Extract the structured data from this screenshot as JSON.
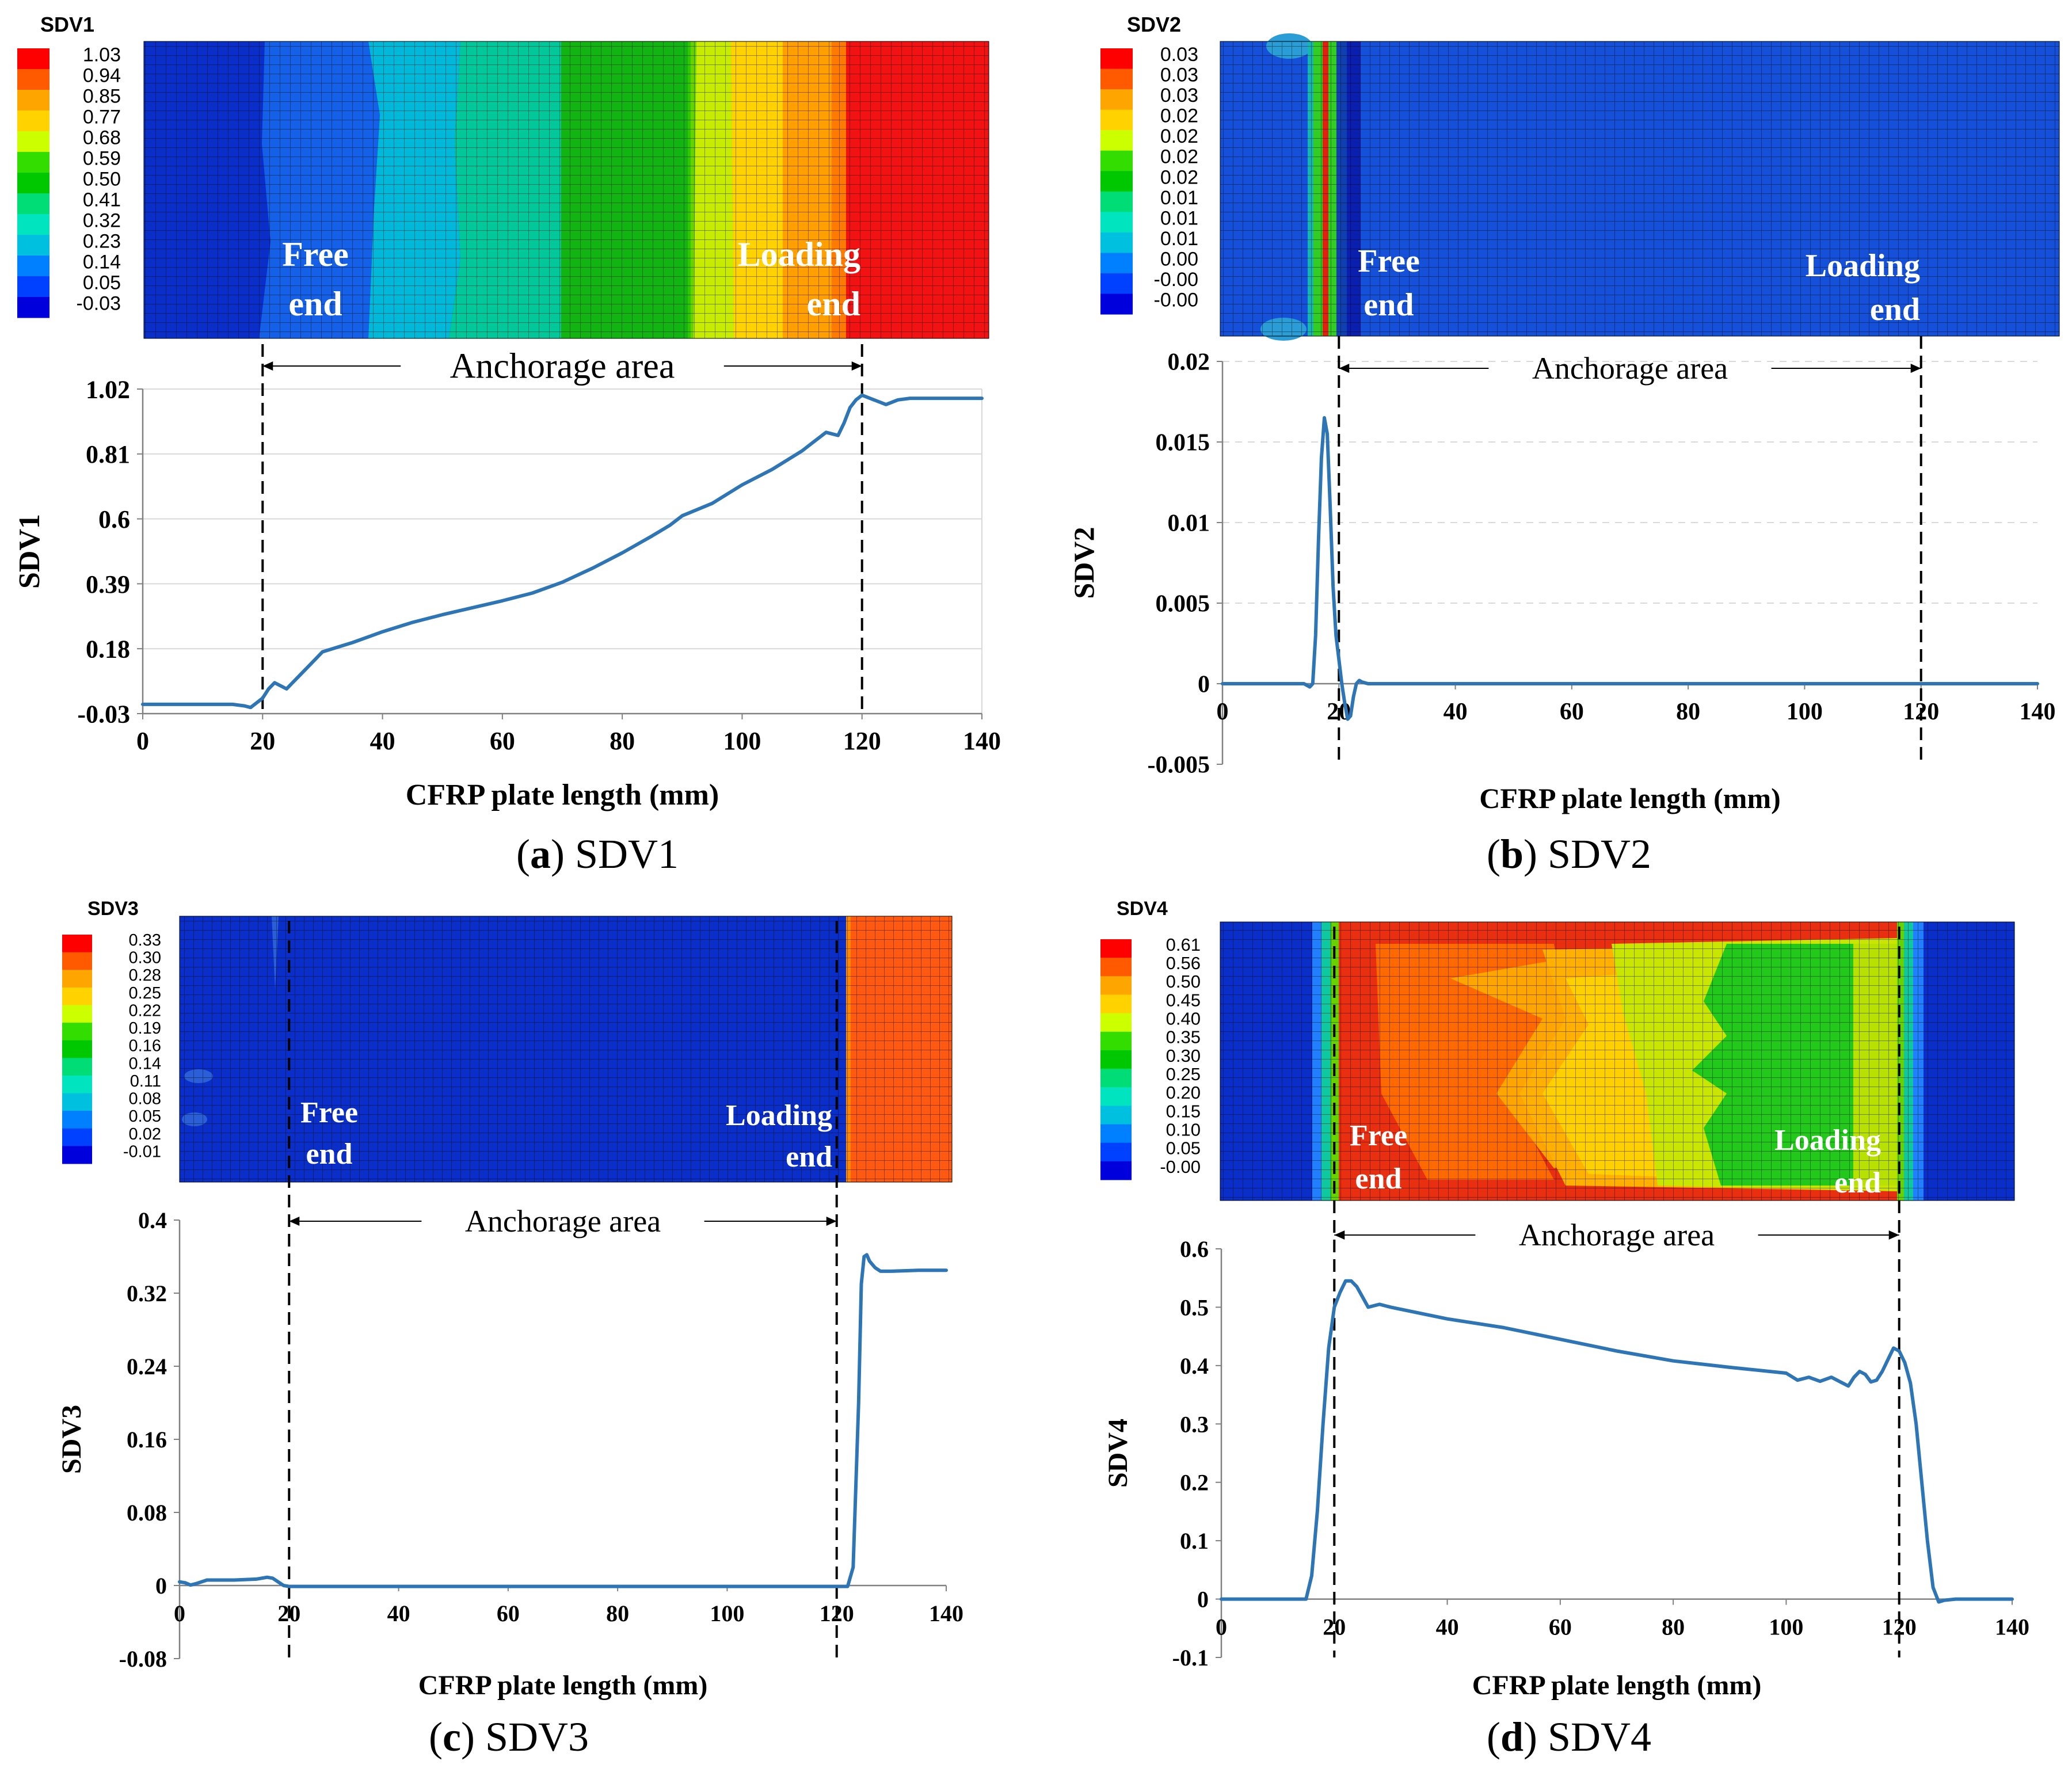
{
  "figure": {
    "panels_order": [
      "a",
      "b",
      "c",
      "d"
    ]
  },
  "chart_data": [
    {
      "id": "a",
      "type": "line",
      "caption_letter": "a",
      "caption_text": "SDV1",
      "title": "SDV1",
      "xlabel": "CFRP plate length (mm)",
      "ylabel": "SDV1",
      "xlim": [
        0,
        140
      ],
      "ylim": [
        -0.03,
        1.02
      ],
      "xticks": [
        "0",
        "20",
        "40",
        "60",
        "80",
        "100",
        "120",
        "140"
      ],
      "xtick_values": [
        0,
        20,
        40,
        60,
        80,
        100,
        120,
        140
      ],
      "yticks": [
        "-0.03",
        "0.18",
        "0.39",
        "0.6",
        "0.81",
        "1.02"
      ],
      "ytick_values": [
        -0.03,
        0.18,
        0.39,
        0.6,
        0.81,
        1.02
      ],
      "grid": true,
      "series": [
        {
          "name": "SDV1",
          "color": "#2e75b6",
          "x": [
            0,
            10,
            15,
            17,
            18,
            19,
            20,
            21,
            22,
            24,
            26,
            28,
            30,
            35,
            40,
            45,
            50,
            60,
            65,
            70,
            75,
            80,
            85,
            88,
            90,
            95,
            100,
            105,
            110,
            112,
            114,
            116,
            117,
            118,
            119,
            120,
            122,
            124,
            126,
            128,
            130,
            135,
            140
          ],
          "y": [
            0,
            0,
            0,
            -0.005,
            -0.01,
            0.005,
            0.02,
            0.05,
            0.07,
            0.05,
            0.09,
            0.13,
            0.17,
            0.2,
            0.235,
            0.265,
            0.29,
            0.335,
            0.36,
            0.395,
            0.44,
            0.49,
            0.545,
            0.58,
            0.61,
            0.65,
            0.71,
            0.76,
            0.82,
            0.85,
            0.88,
            0.87,
            0.91,
            0.96,
            0.985,
            1.0,
            0.985,
            0.97,
            0.985,
            0.99,
            0.99,
            0.99,
            0.99
          ]
        }
      ],
      "dashed_lines_x": [
        20,
        120
      ],
      "annotation_text": "Anchorage area",
      "contour": {
        "label": "SDV1",
        "legend_values": [
          "1.03",
          "0.94",
          "0.85",
          "0.77",
          "0.68",
          "0.59",
          "0.50",
          "0.41",
          "0.32",
          "0.23",
          "0.14",
          "0.05",
          "-0.03"
        ],
        "free_end_text": [
          "Free",
          "end"
        ],
        "loading_end_text": [
          "Loading",
          "end"
        ]
      }
    },
    {
      "id": "b",
      "type": "line",
      "caption_letter": "b",
      "caption_text": "SDV2",
      "title": "SDV2",
      "xlabel": "CFRP plate length (mm)",
      "ylabel": "SDV2",
      "xlim": [
        0,
        140
      ],
      "ylim": [
        -0.005,
        0.02
      ],
      "xticks": [
        "0",
        "20",
        "40",
        "60",
        "80",
        "100",
        "120",
        "140"
      ],
      "xtick_values": [
        0,
        20,
        40,
        60,
        80,
        100,
        120,
        140
      ],
      "yticks": [
        "-0.005",
        "0",
        "0.005",
        "0.01",
        "0.015",
        "0.02"
      ],
      "ytick_values": [
        -0.005,
        0,
        0.005,
        0.01,
        0.015,
        0.02
      ],
      "grid": true,
      "series": [
        {
          "name": "SDV2",
          "color": "#2e75b6",
          "x": [
            0,
            14,
            15,
            15.5,
            16,
            16.5,
            17,
            17.5,
            18,
            18.5,
            19,
            19.5,
            20,
            20.5,
            21,
            21.5,
            22,
            22.5,
            23,
            23.5,
            24,
            25,
            26,
            30,
            40,
            60,
            80,
            100,
            120,
            140
          ],
          "y": [
            0,
            0,
            -0.0002,
            0,
            0.003,
            0.009,
            0.014,
            0.0165,
            0.0155,
            0.011,
            0.006,
            0.003,
            0.0015,
            0,
            -0.0012,
            -0.0022,
            -0.002,
            -0.0008,
            0,
            0.0002,
            0.0001,
            0,
            0,
            0,
            0,
            0,
            0,
            0,
            0,
            0
          ]
        }
      ],
      "dashed_lines_x": [
        20,
        120
      ],
      "annotation_text": "Anchorage area",
      "contour": {
        "label": "SDV2",
        "legend_values": [
          "0.03",
          "0.03",
          "0.03",
          "0.02",
          "0.02",
          "0.02",
          "0.02",
          "0.01",
          "0.01",
          "0.01",
          "0.00",
          "-0.00",
          "-0.00"
        ],
        "free_end_text": [
          "Free",
          "end"
        ],
        "loading_end_text": [
          "Loading",
          "end"
        ]
      }
    },
    {
      "id": "c",
      "type": "line",
      "caption_letter": "c",
      "caption_text": "SDV3",
      "title": "SDV3",
      "xlabel": "CFRP plate length (mm)",
      "ylabel": "SDV3",
      "xlim": [
        0,
        140
      ],
      "ylim": [
        -0.08,
        0.4
      ],
      "xticks": [
        "0",
        "20",
        "40",
        "60",
        "80",
        "100",
        "120",
        "140"
      ],
      "xtick_values": [
        0,
        20,
        40,
        60,
        80,
        100,
        120,
        140
      ],
      "yticks": [
        "-0.08",
        "0",
        "0.08",
        "0.16",
        "0.24",
        "0.32",
        "0.4"
      ],
      "ytick_values": [
        -0.08,
        0,
        0.08,
        0.16,
        0.24,
        0.32,
        0.4
      ],
      "grid": false,
      "series": [
        {
          "name": "SDV3",
          "color": "#2e75b6",
          "x": [
            0,
            1,
            2,
            3,
            5,
            10,
            14,
            16,
            17,
            18,
            19,
            20,
            40,
            60,
            80,
            100,
            120,
            122,
            123,
            124,
            124.5,
            125,
            125.5,
            126,
            127,
            128,
            130,
            135,
            140
          ],
          "y": [
            0.004,
            0.003,
            0.0005,
            0.002,
            0.006,
            0.006,
            0.007,
            0.009,
            0.008,
            0.004,
            0,
            -0.001,
            -0.001,
            -0.001,
            -0.001,
            -0.001,
            -0.001,
            -0.001,
            0.02,
            0.2,
            0.33,
            0.36,
            0.362,
            0.355,
            0.348,
            0.344,
            0.344,
            0.345,
            0.345
          ]
        }
      ],
      "dashed_lines_x": [
        20,
        120
      ],
      "annotation_text": "Anchorage area",
      "contour": {
        "label": "SDV3",
        "legend_values": [
          "0.33",
          "0.30",
          "0.28",
          "0.25",
          "0.22",
          "0.19",
          "0.16",
          "0.14",
          "0.11",
          "0.08",
          "0.05",
          "0.02",
          "-0.01"
        ],
        "free_end_text": [
          "Free",
          "end"
        ],
        "loading_end_text": [
          "Loading",
          "end"
        ]
      }
    },
    {
      "id": "d",
      "type": "line",
      "caption_letter": "d",
      "caption_text": "SDV4",
      "title": "SDV4",
      "xlabel": "CFRP plate length (mm)",
      "ylabel": "SDV4",
      "xlim": [
        0,
        140
      ],
      "ylim": [
        -0.1,
        0.6
      ],
      "xticks": [
        "0",
        "20",
        "40",
        "60",
        "80",
        "100",
        "120",
        "140"
      ],
      "xtick_values": [
        0,
        20,
        40,
        60,
        80,
        100,
        120,
        140
      ],
      "yticks": [
        "-0.1",
        "0",
        "0.1",
        "0.2",
        "0.3",
        "0.4",
        "0.5",
        "0.6"
      ],
      "ytick_values": [
        -0.1,
        0,
        0.1,
        0.2,
        0.3,
        0.4,
        0.5,
        0.6
      ],
      "grid": false,
      "series": [
        {
          "name": "SDV4",
          "color": "#2e75b6",
          "x": [
            0,
            14,
            15,
            16,
            17,
            18,
            19,
            20,
            21,
            22,
            23,
            24,
            26,
            28,
            30,
            35,
            40,
            50,
            60,
            70,
            80,
            90,
            100,
            102,
            104,
            106,
            108,
            110,
            111,
            112,
            113,
            114,
            115,
            116,
            117,
            118,
            119,
            120,
            121,
            122,
            123,
            124,
            125,
            126,
            127,
            128,
            130,
            140
          ],
          "y": [
            0,
            0,
            0,
            0.04,
            0.15,
            0.3,
            0.43,
            0.5,
            0.525,
            0.545,
            0.545,
            0.535,
            0.5,
            0.505,
            0.5,
            0.49,
            0.48,
            0.465,
            0.445,
            0.425,
            0.408,
            0.397,
            0.387,
            0.375,
            0.38,
            0.373,
            0.38,
            0.37,
            0.365,
            0.38,
            0.39,
            0.385,
            0.372,
            0.375,
            0.39,
            0.41,
            0.43,
            0.425,
            0.405,
            0.37,
            0.3,
            0.2,
            0.1,
            0.02,
            -0.005,
            -0.002,
            0,
            0
          ]
        }
      ],
      "dashed_lines_x": [
        20,
        120
      ],
      "annotation_text": "Anchorage area",
      "contour": {
        "label": "SDV4",
        "legend_values": [
          "0.61",
          "0.56",
          "0.50",
          "0.45",
          "0.40",
          "0.35",
          "0.30",
          "0.25",
          "0.20",
          "0.15",
          "0.10",
          "0.05",
          "-0.00"
        ],
        "free_end_text": [
          "Free",
          "end"
        ],
        "loading_end_text": [
          "Loading",
          "end"
        ]
      }
    }
  ],
  "palette": {
    "legend_colors": [
      "#ff0000",
      "#ff5a00",
      "#ffa500",
      "#ffd200",
      "#ccff00",
      "#33dd00",
      "#00c800",
      "#00dd77",
      "#00e5c0",
      "#00c0e0",
      "#0080ff",
      "#0040ff",
      "#0000dd"
    ],
    "background_blue": "#0a2fc8",
    "line_color": "#2e75b6",
    "grid_color": "#d9d9d9",
    "axis_color": "#808080",
    "text_color": "#000000"
  }
}
